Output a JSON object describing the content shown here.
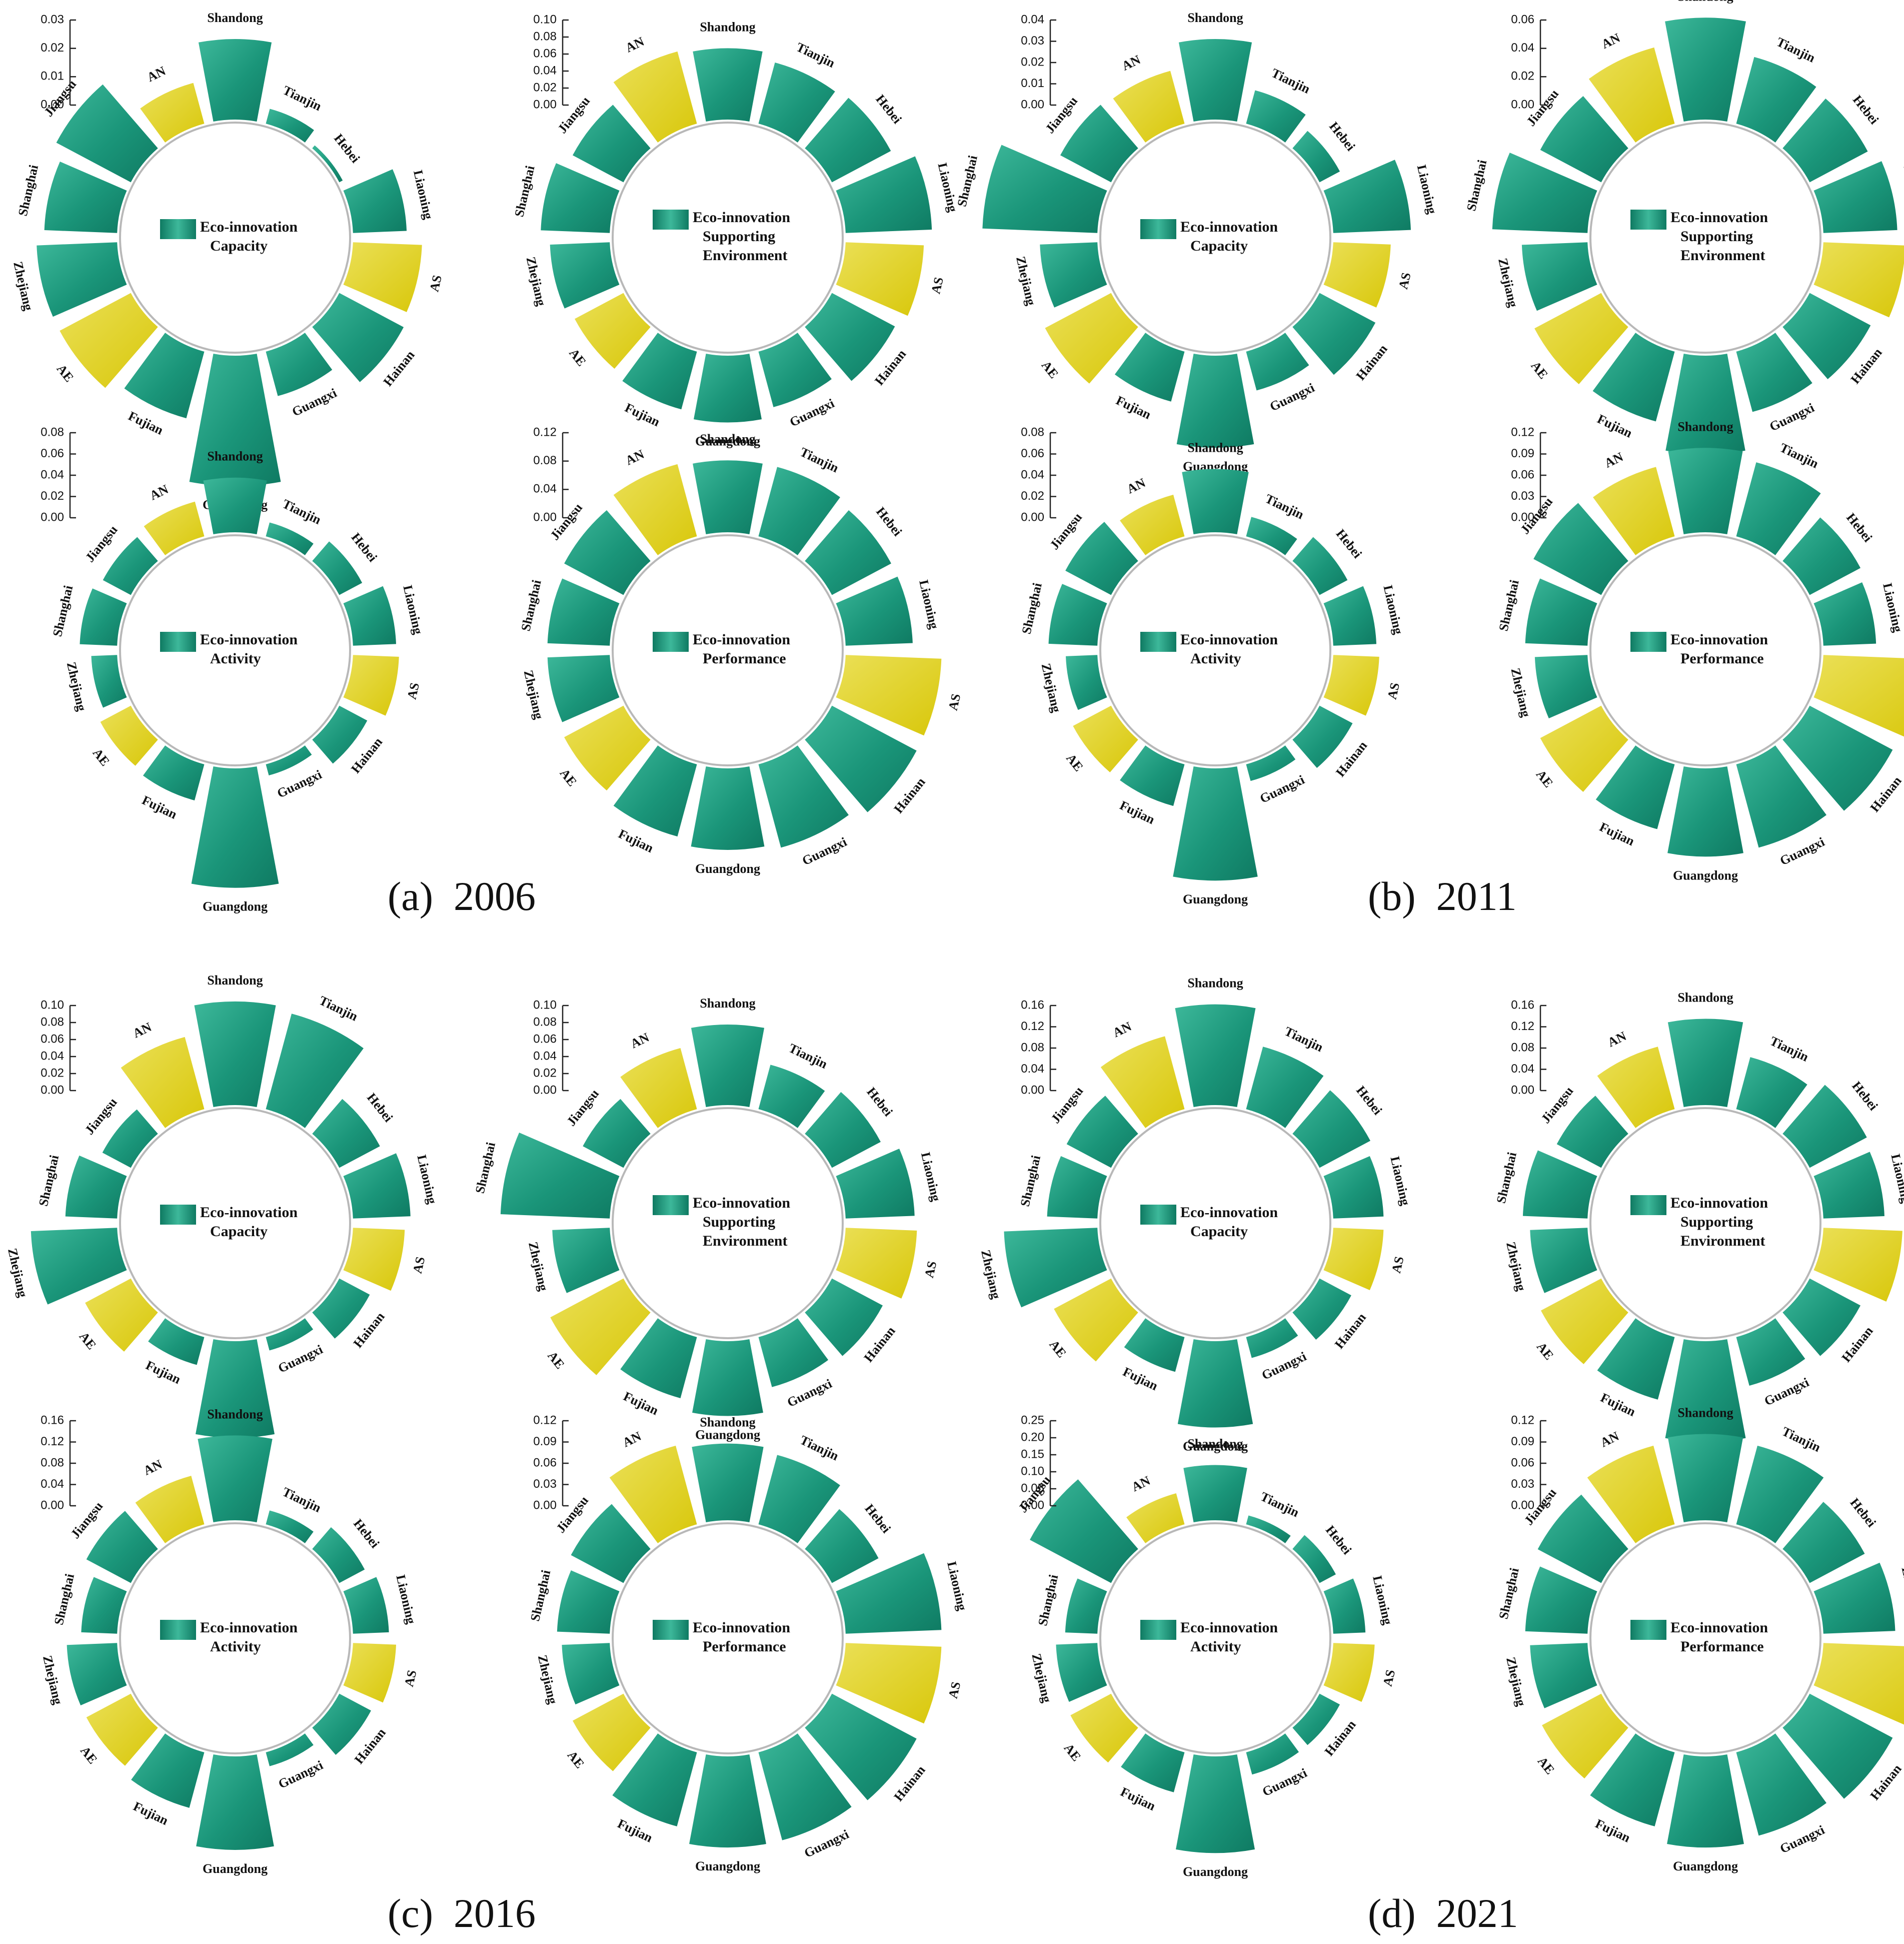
{
  "figure": {
    "palette": {
      "bar": "#1a9579",
      "bar_dark": "#0f7a62",
      "bar_light": "#3db89a",
      "highlight": "#d8c70a",
      "highlight_light": "#ebe057"
    },
    "captions": [
      {
        "label": "(a)  2006"
      },
      {
        "label": "(b)  2011"
      },
      {
        "label": "(c)  2016"
      },
      {
        "label": "(d)  2021"
      }
    ]
  },
  "chart_data": [
    {
      "type": "radial-bar",
      "panel": "(a)  2006",
      "title": "Eco-innovation Capacity",
      "yticks": [
        "0.00",
        "0.01",
        "0.02",
        "0.03"
      ],
      "ylim": [
        0,
        0.03
      ],
      "categories": [
        "Shandong",
        "Tianjin",
        "Hebei",
        "Liaoning",
        "AS",
        "Hainan",
        "Guangxi",
        "Guangdong",
        "Fujian",
        "AE",
        "Zhejiang",
        "Shanghai",
        "Jiangsu",
        "AN"
      ],
      "highlighted": [
        "AS",
        "AE",
        "AN"
      ],
      "values": [
        0.021,
        0.004,
        0.001,
        0.014,
        0.018,
        0.019,
        0.012,
        0.034,
        0.018,
        0.021,
        0.021,
        0.019,
        0.022,
        0.011
      ]
    },
    {
      "type": "radial-bar",
      "panel": "(a)  2006",
      "title": "Eco-innovation Supporting Environment",
      "yticks": [
        "0.00",
        "0.02",
        "0.04",
        "0.06",
        "0.08",
        "0.10"
      ],
      "ylim": [
        0,
        0.1
      ],
      "categories": [
        "Shandong",
        "Tianjin",
        "Hebei",
        "Liaoning",
        "AS",
        "Hainan",
        "Guangxi",
        "Guangdong",
        "Fujian",
        "AE",
        "Zhejiang",
        "Shanghai",
        "Jiangsu",
        "AN"
      ],
      "highlighted": [
        "AS",
        "AE",
        "AN"
      ],
      "values": [
        0.062,
        0.055,
        0.058,
        0.075,
        0.068,
        0.062,
        0.05,
        0.058,
        0.052,
        0.048,
        0.052,
        0.06,
        0.05,
        0.065
      ]
    },
    {
      "type": "radial-bar",
      "panel": "(a)  2006",
      "title": "Eco-innovation Activity",
      "yticks": [
        "0.00",
        "0.02",
        "0.04",
        "0.06",
        "0.08"
      ],
      "ylim": [
        0,
        0.08
      ],
      "categories": [
        "Shandong",
        "Tianjin",
        "Hebei",
        "Liaoning",
        "AS",
        "Hainan",
        "Guangxi",
        "Guangdong",
        "Fujian",
        "AE",
        "Zhejiang",
        "Shanghai",
        "Jiangsu",
        "AN"
      ],
      "highlighted": [
        "AS",
        "AE",
        "AN"
      ],
      "values": [
        0.038,
        0.01,
        0.018,
        0.03,
        0.032,
        0.022,
        0.008,
        0.083,
        0.026,
        0.024,
        0.018,
        0.026,
        0.022,
        0.025
      ]
    },
    {
      "type": "radial-bar",
      "panel": "(a)  2006",
      "title": "Eco-innovation Performance",
      "yticks": [
        "0.00",
        "0.04",
        "0.08",
        "0.12"
      ],
      "ylim": [
        0,
        0.12
      ],
      "categories": [
        "Shandong",
        "Tianjin",
        "Hebei",
        "Liaoning",
        "AS",
        "Hainan",
        "Guangxi",
        "Guangdong",
        "Fujian",
        "AE",
        "Zhejiang",
        "Shanghai",
        "Jiangsu",
        "AN"
      ],
      "highlighted": [
        "AS",
        "AE",
        "AN"
      ],
      "values": [
        0.075,
        0.075,
        0.07,
        0.07,
        0.1,
        0.1,
        0.09,
        0.085,
        0.078,
        0.07,
        0.065,
        0.065,
        0.07,
        0.078
      ]
    },
    {
      "type": "radial-bar",
      "panel": "(b)  2011",
      "title": "Eco-innovation Capacity",
      "yticks": [
        "0.00",
        "0.01",
        "0.02",
        "0.03",
        "0.04"
      ],
      "ylim": [
        0,
        0.04
      ],
      "categories": [
        "Shandong",
        "Tianjin",
        "Hebei",
        "Liaoning",
        "AS",
        "Hainan",
        "Guangxi",
        "Guangdong",
        "Fujian",
        "AE",
        "Zhejiang",
        "Shanghai",
        "Jiangsu",
        "AN"
      ],
      "highlighted": [
        "AS",
        "AE",
        "AN"
      ],
      "values": [
        0.028,
        0.012,
        0.008,
        0.027,
        0.02,
        0.022,
        0.014,
        0.032,
        0.018,
        0.026,
        0.02,
        0.04,
        0.02,
        0.019
      ]
    },
    {
      "type": "radial-bar",
      "panel": "(b)  2011",
      "title": "Eco-innovation Supporting Environment",
      "yticks": [
        "0.00",
        "0.02",
        "0.04",
        "0.06"
      ],
      "ylim": [
        0,
        0.07
      ],
      "categories": [
        "Shandong",
        "Tianjin",
        "Hebei",
        "Liaoning",
        "AS",
        "Hainan",
        "Guangxi",
        "Guangdong",
        "Fujian",
        "AE",
        "Zhejiang",
        "Shanghai",
        "Jiangsu",
        "AN"
      ],
      "highlighted": [
        "AS",
        "AE",
        "AN"
      ],
      "values": [
        0.062,
        0.042,
        0.04,
        0.045,
        0.05,
        0.042,
        0.038,
        0.06,
        0.044,
        0.046,
        0.04,
        0.058,
        0.042,
        0.048
      ]
    },
    {
      "type": "radial-bar",
      "panel": "(b)  2011",
      "title": "Eco-innovation Activity",
      "yticks": [
        "0.00",
        "0.02",
        "0.04",
        "0.06",
        "0.08"
      ],
      "ylim": [
        0,
        0.08
      ],
      "categories": [
        "Shandong",
        "Tianjin",
        "Hebei",
        "Liaoning",
        "AS",
        "Hainan",
        "Guangxi",
        "Guangdong",
        "Fujian",
        "AE",
        "Zhejiang",
        "Shanghai",
        "Jiangsu",
        "AN"
      ],
      "highlighted": [
        "AS",
        "AE",
        "AN"
      ],
      "values": [
        0.044,
        0.014,
        0.022,
        0.03,
        0.032,
        0.026,
        0.012,
        0.078,
        0.03,
        0.03,
        0.022,
        0.034,
        0.036,
        0.03
      ]
    },
    {
      "type": "radial-bar",
      "panel": "(b)  2011",
      "title": "Eco-innovation Performance",
      "yticks": [
        "0.00",
        "0.03",
        "0.06",
        "0.09",
        "0.12"
      ],
      "ylim": [
        0,
        0.12
      ],
      "categories": [
        "Shandong",
        "Tianjin",
        "Hebei",
        "Liaoning",
        "AS",
        "Hainan",
        "Guangxi",
        "Guangdong",
        "Fujian",
        "AE",
        "Zhejiang",
        "Shanghai",
        "Jiangsu",
        "AN"
      ],
      "highlighted": [
        "AS",
        "AE",
        "AN"
      ],
      "values": [
        0.088,
        0.08,
        0.06,
        0.055,
        0.11,
        0.098,
        0.09,
        0.092,
        0.07,
        0.072,
        0.055,
        0.065,
        0.08,
        0.075
      ]
    },
    {
      "type": "radial-bar",
      "panel": "(c)  2016",
      "title": "Eco-innovation Capacity",
      "yticks": [
        "0.00",
        "0.02",
        "0.04",
        "0.06",
        "0.08",
        "0.10"
      ],
      "ylim": [
        0,
        0.1
      ],
      "categories": [
        "Shandong",
        "Tianjin",
        "Hebei",
        "Liaoning",
        "AS",
        "Hainan",
        "Guangxi",
        "Guangdong",
        "Fujian",
        "AE",
        "Zhejiang",
        "Shanghai",
        "Jiangsu",
        "AN"
      ],
      "highlighted": [
        "AS",
        "AE",
        "AN"
      ],
      "values": [
        0.09,
        0.086,
        0.04,
        0.05,
        0.045,
        0.03,
        0.012,
        0.084,
        0.025,
        0.045,
        0.075,
        0.045,
        0.028,
        0.065
      ]
    },
    {
      "type": "radial-bar",
      "panel": "(c)  2016",
      "title": "Eco-innovation Supporting Environment",
      "yticks": [
        "0.00",
        "0.02",
        "0.04",
        "0.06",
        "0.08",
        "0.10"
      ],
      "ylim": [
        0,
        0.1
      ],
      "categories": [
        "Shandong",
        "Tianjin",
        "Hebei",
        "Liaoning",
        "AS",
        "Hainan",
        "Guangxi",
        "Guangdong",
        "Fujian",
        "AE",
        "Zhejiang",
        "Shanghai",
        "Jiangsu",
        "AN"
      ],
      "highlighted": [
        "AS",
        "AE",
        "AN"
      ],
      "values": [
        0.07,
        0.04,
        0.048,
        0.06,
        0.062,
        0.05,
        0.045,
        0.065,
        0.055,
        0.072,
        0.05,
        0.095,
        0.04,
        0.055
      ]
    },
    {
      "type": "radial-bar",
      "panel": "(c)  2016",
      "title": "Eco-innovation Activity",
      "yticks": [
        "0.00",
        "0.04",
        "0.08",
        "0.12",
        "0.16"
      ],
      "ylim": [
        0,
        0.16
      ],
      "categories": [
        "Shandong",
        "Tianjin",
        "Hebei",
        "Liaoning",
        "AS",
        "Hainan",
        "Guangxi",
        "Guangdong",
        "Fujian",
        "AE",
        "Zhejiang",
        "Shanghai",
        "Jiangsu",
        "AN"
      ],
      "highlighted": [
        "AS",
        "AE",
        "AN"
      ],
      "values": [
        0.118,
        0.02,
        0.04,
        0.05,
        0.06,
        0.05,
        0.02,
        0.13,
        0.08,
        0.07,
        0.07,
        0.05,
        0.07,
        0.07
      ]
    },
    {
      "type": "radial-bar",
      "panel": "(c)  2016",
      "title": "Eco-innovation Performance",
      "yticks": [
        "0.00",
        "0.03",
        "0.06",
        "0.09",
        "0.12"
      ],
      "ylim": [
        0,
        0.12
      ],
      "categories": [
        "Shandong",
        "Tianjin",
        "Hebei",
        "Liaoning",
        "AS",
        "Hainan",
        "Guangxi",
        "Guangdong",
        "Fujian",
        "AE",
        "Zhejiang",
        "Shanghai",
        "Jiangsu",
        "AN"
      ],
      "highlighted": [
        "AS",
        "AE",
        "AN"
      ],
      "values": [
        0.08,
        0.075,
        0.055,
        0.1,
        0.1,
        0.1,
        0.095,
        0.095,
        0.08,
        0.06,
        0.05,
        0.055,
        0.062,
        0.085
      ]
    },
    {
      "type": "radial-bar",
      "panel": "(d)  2021",
      "title": "Eco-innovation Capacity",
      "yticks": [
        "0.00",
        "0.04",
        "0.08",
        "0.12",
        "0.16"
      ],
      "ylim": [
        0,
        0.16
      ],
      "categories": [
        "Shandong",
        "Tianjin",
        "Hebei",
        "Liaoning",
        "AS",
        "Hainan",
        "Guangxi",
        "Guangdong",
        "Fujian",
        "AE",
        "Zhejiang",
        "Shanghai",
        "Jiangsu",
        "AN"
      ],
      "highlighted": [
        "AS",
        "AE",
        "AN"
      ],
      "values": [
        0.14,
        0.09,
        0.08,
        0.07,
        0.07,
        0.05,
        0.03,
        0.12,
        0.05,
        0.09,
        0.13,
        0.07,
        0.07,
        0.105
      ]
    },
    {
      "type": "radial-bar",
      "panel": "(d)  2021",
      "title": "Eco-innovation Supporting Environment",
      "yticks": [
        "0.00",
        "0.04",
        "0.08",
        "0.12",
        "0.16"
      ],
      "ylim": [
        0,
        0.16
      ],
      "categories": [
        "Shandong",
        "Tianjin",
        "Hebei",
        "Liaoning",
        "AS",
        "Hainan",
        "Guangxi",
        "Guangdong",
        "Fujian",
        "AE",
        "Zhejiang",
        "Shanghai",
        "Jiangsu",
        "AN"
      ],
      "highlighted": [
        "AS",
        "AE",
        "AN"
      ],
      "values": [
        0.12,
        0.075,
        0.09,
        0.085,
        0.11,
        0.08,
        0.07,
        0.14,
        0.09,
        0.095,
        0.08,
        0.09,
        0.07,
        0.09
      ]
    },
    {
      "type": "radial-bar",
      "panel": "(d)  2021",
      "title": "Eco-innovation Activity",
      "yticks": [
        "0.00",
        "0.05",
        "0.10",
        "0.15",
        "0.20",
        "0.25"
      ],
      "ylim": [
        0,
        0.25
      ],
      "categories": [
        "Shandong",
        "Tianjin",
        "Hebei",
        "Liaoning",
        "AS",
        "Hainan",
        "Guangxi",
        "Guangdong",
        "Fujian",
        "AE",
        "Zhejiang",
        "Shanghai",
        "Jiangsu",
        "AN"
      ],
      "highlighted": [
        "AS",
        "AE",
        "AN"
      ],
      "values": [
        0.12,
        0.02,
        0.04,
        0.07,
        0.09,
        0.05,
        0.05,
        0.21,
        0.09,
        0.1,
        0.09,
        0.07,
        0.2,
        0.07
      ]
    },
    {
      "type": "radial-bar",
      "panel": "(d)  2021",
      "title": "Eco-innovation Performance",
      "yticks": [
        "0.00",
        "0.03",
        "0.06",
        "0.09",
        "0.12"
      ],
      "ylim": [
        0,
        0.12
      ],
      "categories": [
        "Shandong",
        "Tianjin",
        "Hebei",
        "Liaoning",
        "AS",
        "Hainan",
        "Guangxi",
        "Guangdong",
        "Fujian",
        "AE",
        "Zhejiang",
        "Shanghai",
        "Jiangsu",
        "AN"
      ],
      "highlighted": [
        "AS",
        "AE",
        "AN"
      ],
      "values": [
        0.09,
        0.085,
        0.065,
        0.075,
        0.115,
        0.098,
        0.09,
        0.095,
        0.08,
        0.07,
        0.06,
        0.065,
        0.075,
        0.085
      ]
    }
  ]
}
